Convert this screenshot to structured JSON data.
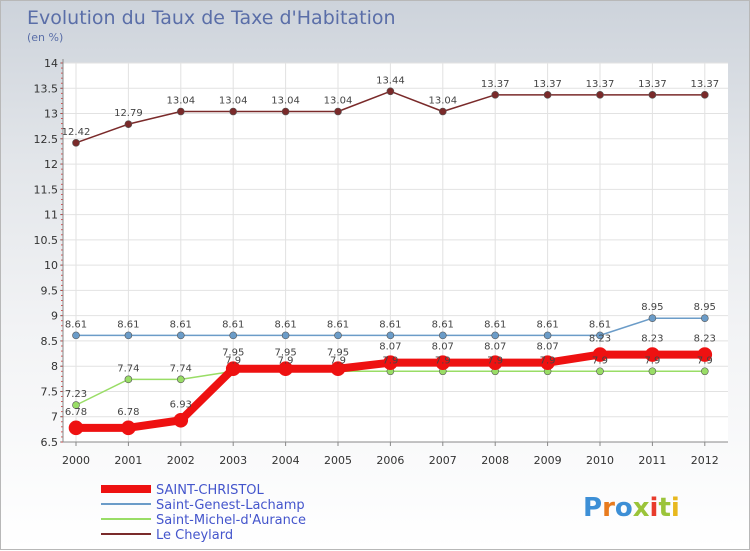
{
  "title": "Evolution du Taux de Taxe d'Habitation",
  "subtitle": "(en %)",
  "logo": "Proxiti",
  "chart_data": {
    "type": "line",
    "title": "Evolution du Taux de Taxe d'Habitation",
    "ylabel": "(en %)",
    "xlabel": "",
    "x": [
      "2000",
      "2001",
      "2002",
      "2003",
      "2004",
      "2005",
      "2006",
      "2007",
      "2008",
      "2009",
      "2010",
      "2011",
      "2012"
    ],
    "ylim": [
      6.5,
      14
    ],
    "yticks": [
      "6.5",
      "7",
      "7.5",
      "8",
      "8.5",
      "9",
      "9.5",
      "10",
      "10.5",
      "11",
      "11.5",
      "12",
      "12.5",
      "13",
      "13.5",
      "14"
    ],
    "legend_position": "bottom-left",
    "series": [
      {
        "name": "SAINT-CHRISTOL",
        "color": "#ee1111",
        "width": 8,
        "marker": 7,
        "values": [
          6.78,
          6.78,
          6.93,
          7.95,
          7.95,
          7.95,
          8.07,
          8.07,
          8.07,
          8.07,
          8.23,
          8.23,
          8.23
        ],
        "labels": [
          "6.78",
          "6.78",
          "6.93",
          "7.95",
          "7.95",
          "7.95",
          "8.07",
          "8.07",
          "8.07",
          "8.07",
          "8.23",
          "8.23",
          "8.23"
        ]
      },
      {
        "name": "Saint-Genest-Lachamp",
        "color": "#6b9cc8",
        "width": 1.5,
        "marker": 3.5,
        "values": [
          8.61,
          8.61,
          8.61,
          8.61,
          8.61,
          8.61,
          8.61,
          8.61,
          8.61,
          8.61,
          8.61,
          8.95,
          8.95
        ],
        "labels": [
          "8.61",
          "8.61",
          "8.61",
          "8.61",
          "8.61",
          "8.61",
          "8.61",
          "8.61",
          "8.61",
          "8.61",
          "8.61",
          "8.95",
          "8.95"
        ]
      },
      {
        "name": "Saint-Michel-d'Aurance",
        "color": "#99dd66",
        "width": 1.5,
        "marker": 3.5,
        "values": [
          7.23,
          7.74,
          7.74,
          7.9,
          7.9,
          7.9,
          7.9,
          7.9,
          7.9,
          7.9,
          7.9,
          7.9,
          7.9
        ],
        "labels": [
          "7.23",
          "7.74",
          "7.74",
          "7.9",
          "7.9",
          "7.9",
          "7.9",
          "7.9",
          "7.9",
          "7.9",
          "7.9",
          "7.9",
          "7.9"
        ]
      },
      {
        "name": "Le Cheylard",
        "color": "#7a2a2a",
        "width": 1.5,
        "marker": 3.5,
        "values": [
          12.42,
          12.79,
          13.04,
          13.04,
          13.04,
          13.04,
          13.44,
          13.04,
          13.37,
          13.37,
          13.37,
          13.37,
          13.37
        ],
        "labels": [
          "12.42",
          "12.79",
          "13.04",
          "13.04",
          "13.04",
          "13.04",
          "13.44",
          "13.04",
          "13.37",
          "13.37",
          "13.37",
          "13.37",
          "13.37"
        ]
      }
    ]
  }
}
